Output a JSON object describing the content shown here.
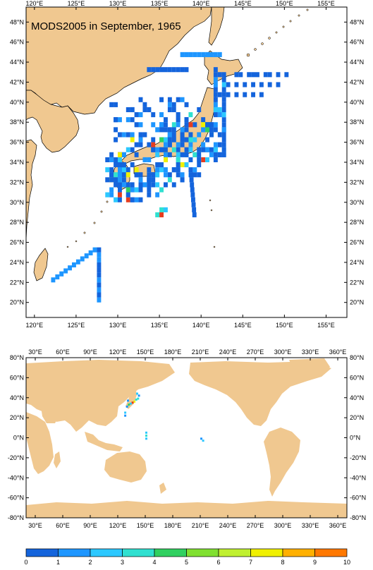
{
  "top_map": {
    "title": "MODS2005 in September, 1965",
    "x_ticks": [
      "120°E",
      "125°E",
      "130°E",
      "135°E",
      "140°E",
      "145°E",
      "150°E",
      "155°E"
    ],
    "y_ticks": [
      "20°N",
      "22°N",
      "24°N",
      "26°N",
      "28°N",
      "30°N",
      "32°N",
      "34°N",
      "36°N",
      "38°N",
      "40°N",
      "42°N",
      "44°N",
      "46°N",
      "48°N"
    ],
    "lon_range": [
      119,
      157.5
    ],
    "lat_range": [
      18.5,
      49.5
    ]
  },
  "bottom_map": {
    "x_ticks": [
      "30°E",
      "60°E",
      "90°E",
      "120°E",
      "150°E",
      "180°E",
      "210°E",
      "240°E",
      "270°E",
      "300°E",
      "330°E",
      "360°E"
    ],
    "y_ticks": [
      "-80°N",
      "-60°N",
      "-40°N",
      "-20°N",
      "0°N",
      "20°N",
      "40°N",
      "60°N",
      "80°N"
    ],
    "lon_range": [
      20,
      370
    ],
    "lat_range": [
      -80,
      80
    ]
  },
  "colorbar": {
    "labels": [
      "0",
      "1",
      "2",
      "3",
      "4",
      "5",
      "6",
      "7",
      "8",
      "9",
      "10"
    ],
    "colors": [
      "#1464dc",
      "#1e96ff",
      "#2cc8ff",
      "#30e0d0",
      "#30d060",
      "#80e030",
      "#c0f030",
      "#f0f000",
      "#ffb000",
      "#ff7800",
      "#e63c1e"
    ]
  },
  "colors": {
    "land": "#f0c890",
    "coast": "#000000",
    "ocean": "#ffffff"
  }
}
